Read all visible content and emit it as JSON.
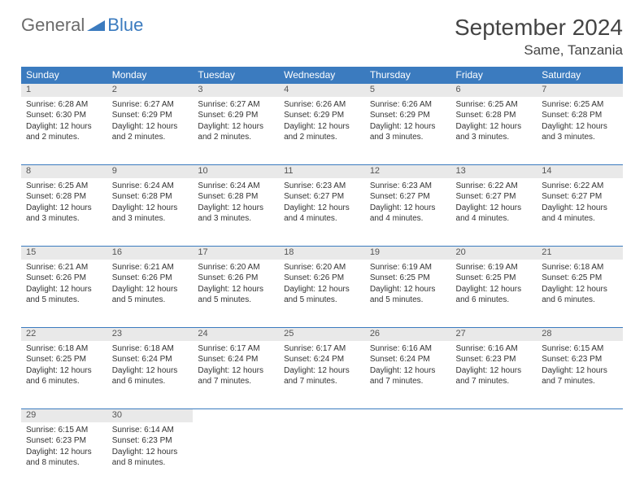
{
  "logo": {
    "text1": "General",
    "text2": "Blue"
  },
  "title": "September 2024",
  "location": "Same, Tanzania",
  "colors": {
    "header_bg": "#3b7bbf",
    "daynum_bg": "#e9e9e9",
    "text": "#333333",
    "title_text": "#444444",
    "logo_gray": "#6b6b6b",
    "logo_blue": "#3b7bbf"
  },
  "weekdays": [
    "Sunday",
    "Monday",
    "Tuesday",
    "Wednesday",
    "Thursday",
    "Friday",
    "Saturday"
  ],
  "weeks": [
    [
      {
        "n": "1",
        "sr": "6:28 AM",
        "ss": "6:30 PM",
        "dl": "12 hours and 2 minutes."
      },
      {
        "n": "2",
        "sr": "6:27 AM",
        "ss": "6:29 PM",
        "dl": "12 hours and 2 minutes."
      },
      {
        "n": "3",
        "sr": "6:27 AM",
        "ss": "6:29 PM",
        "dl": "12 hours and 2 minutes."
      },
      {
        "n": "4",
        "sr": "6:26 AM",
        "ss": "6:29 PM",
        "dl": "12 hours and 2 minutes."
      },
      {
        "n": "5",
        "sr": "6:26 AM",
        "ss": "6:29 PM",
        "dl": "12 hours and 3 minutes."
      },
      {
        "n": "6",
        "sr": "6:25 AM",
        "ss": "6:28 PM",
        "dl": "12 hours and 3 minutes."
      },
      {
        "n": "7",
        "sr": "6:25 AM",
        "ss": "6:28 PM",
        "dl": "12 hours and 3 minutes."
      }
    ],
    [
      {
        "n": "8",
        "sr": "6:25 AM",
        "ss": "6:28 PM",
        "dl": "12 hours and 3 minutes."
      },
      {
        "n": "9",
        "sr": "6:24 AM",
        "ss": "6:28 PM",
        "dl": "12 hours and 3 minutes."
      },
      {
        "n": "10",
        "sr": "6:24 AM",
        "ss": "6:28 PM",
        "dl": "12 hours and 3 minutes."
      },
      {
        "n": "11",
        "sr": "6:23 AM",
        "ss": "6:27 PM",
        "dl": "12 hours and 4 minutes."
      },
      {
        "n": "12",
        "sr": "6:23 AM",
        "ss": "6:27 PM",
        "dl": "12 hours and 4 minutes."
      },
      {
        "n": "13",
        "sr": "6:22 AM",
        "ss": "6:27 PM",
        "dl": "12 hours and 4 minutes."
      },
      {
        "n": "14",
        "sr": "6:22 AM",
        "ss": "6:27 PM",
        "dl": "12 hours and 4 minutes."
      }
    ],
    [
      {
        "n": "15",
        "sr": "6:21 AM",
        "ss": "6:26 PM",
        "dl": "12 hours and 5 minutes."
      },
      {
        "n": "16",
        "sr": "6:21 AM",
        "ss": "6:26 PM",
        "dl": "12 hours and 5 minutes."
      },
      {
        "n": "17",
        "sr": "6:20 AM",
        "ss": "6:26 PM",
        "dl": "12 hours and 5 minutes."
      },
      {
        "n": "18",
        "sr": "6:20 AM",
        "ss": "6:26 PM",
        "dl": "12 hours and 5 minutes."
      },
      {
        "n": "19",
        "sr": "6:19 AM",
        "ss": "6:25 PM",
        "dl": "12 hours and 5 minutes."
      },
      {
        "n": "20",
        "sr": "6:19 AM",
        "ss": "6:25 PM",
        "dl": "12 hours and 6 minutes."
      },
      {
        "n": "21",
        "sr": "6:18 AM",
        "ss": "6:25 PM",
        "dl": "12 hours and 6 minutes."
      }
    ],
    [
      {
        "n": "22",
        "sr": "6:18 AM",
        "ss": "6:25 PM",
        "dl": "12 hours and 6 minutes."
      },
      {
        "n": "23",
        "sr": "6:18 AM",
        "ss": "6:24 PM",
        "dl": "12 hours and 6 minutes."
      },
      {
        "n": "24",
        "sr": "6:17 AM",
        "ss": "6:24 PM",
        "dl": "12 hours and 7 minutes."
      },
      {
        "n": "25",
        "sr": "6:17 AM",
        "ss": "6:24 PM",
        "dl": "12 hours and 7 minutes."
      },
      {
        "n": "26",
        "sr": "6:16 AM",
        "ss": "6:24 PM",
        "dl": "12 hours and 7 minutes."
      },
      {
        "n": "27",
        "sr": "6:16 AM",
        "ss": "6:23 PM",
        "dl": "12 hours and 7 minutes."
      },
      {
        "n": "28",
        "sr": "6:15 AM",
        "ss": "6:23 PM",
        "dl": "12 hours and 7 minutes."
      }
    ],
    [
      {
        "n": "29",
        "sr": "6:15 AM",
        "ss": "6:23 PM",
        "dl": "12 hours and 8 minutes."
      },
      {
        "n": "30",
        "sr": "6:14 AM",
        "ss": "6:23 PM",
        "dl": "12 hours and 8 minutes."
      },
      null,
      null,
      null,
      null,
      null
    ]
  ],
  "labels": {
    "sunrise": "Sunrise: ",
    "sunset": "Sunset: ",
    "daylight": "Daylight: "
  }
}
